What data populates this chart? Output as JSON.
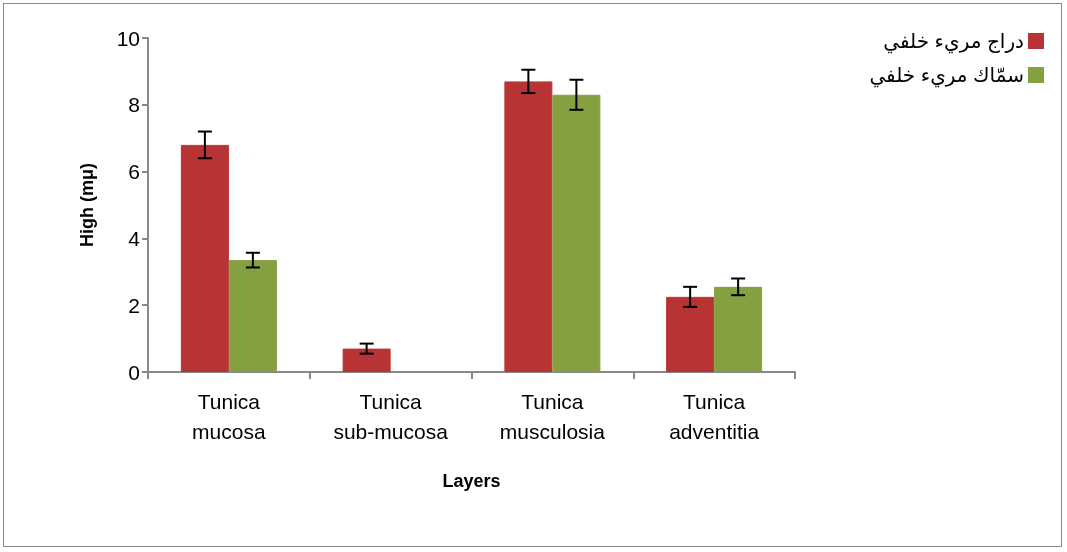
{
  "chart_data": {
    "type": "bar",
    "xlabel": "Layers",
    "ylabel": "High (mμ)",
    "categories": [
      "Tunica mucosa",
      "Tunica sub-mucosa",
      "Tunica musculosia",
      "Tunica adventitia"
    ],
    "series": [
      {
        "name": "دراج مريء خلفي",
        "color": "#b83434",
        "values": [
          6.8,
          0.7,
          8.7,
          2.25
        ],
        "errors": [
          0.4,
          0.15,
          0.35,
          0.3
        ]
      },
      {
        "name": "سمّاك مريء خلفي",
        "color": "#84a040",
        "values": [
          3.35,
          null,
          8.3,
          2.55
        ],
        "errors": [
          0.22,
          null,
          0.45,
          0.25
        ]
      }
    ],
    "ylim": [
      0,
      10
    ],
    "yticks": [
      0,
      2,
      4,
      6,
      8,
      10
    ],
    "grid": false,
    "legend": "top right"
  }
}
